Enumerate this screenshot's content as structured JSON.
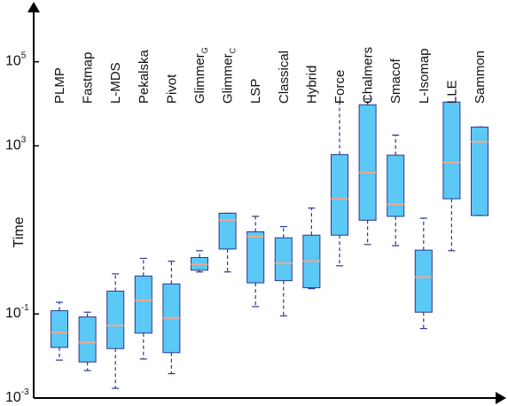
{
  "chart_data": {
    "type": "box",
    "ylabel": "Time",
    "y_scale": "log",
    "ylim": [
      0.001,
      2000000
    ],
    "y_ticks": [
      {
        "value": 0.001,
        "base": "10",
        "exp": "-3"
      },
      {
        "value": 0.1,
        "base": "10",
        "exp": "-1"
      },
      {
        "value": 1000,
        "base": "10",
        "exp": "3"
      },
      {
        "value": 100000,
        "base": "10",
        "exp": "5"
      }
    ],
    "colors": {
      "box_fill": "#5bc8f5",
      "box_edge": "#2b3a8c",
      "median": "#f4a58a",
      "whisker": "#2b3a8c",
      "axis": "#000000"
    },
    "categories": [
      {
        "name": "PLMP",
        "sub": ""
      },
      {
        "name": "Fastmap",
        "sub": ""
      },
      {
        "name": "L-MDS",
        "sub": ""
      },
      {
        "name": "Pekalska",
        "sub": ""
      },
      {
        "name": "Pivot",
        "sub": ""
      },
      {
        "name": "Glimmer",
        "sub": "G"
      },
      {
        "name": "Glimmer",
        "sub": "C"
      },
      {
        "name": "LSP",
        "sub": ""
      },
      {
        "name": "Classical",
        "sub": ""
      },
      {
        "name": "Hybrid",
        "sub": ""
      },
      {
        "name": "Force",
        "sub": ""
      },
      {
        "name": "Chalmers",
        "sub": ""
      },
      {
        "name": "Smacof",
        "sub": ""
      },
      {
        "name": "L-Isomap",
        "sub": ""
      },
      {
        "name": "LLE",
        "sub": ""
      },
      {
        "name": "Sammon",
        "sub": ""
      }
    ],
    "boxes": [
      {
        "min": 0.008,
        "q1": 0.016,
        "median": 0.036,
        "q3": 0.12,
        "max": 0.19
      },
      {
        "min": 0.0045,
        "q1": 0.0072,
        "median": 0.021,
        "q3": 0.085,
        "max": 0.11
      },
      {
        "min": 0.0017,
        "q1": 0.015,
        "median": 0.053,
        "q3": 0.35,
        "max": 0.9
      },
      {
        "min": 0.0085,
        "q1": 0.035,
        "median": 0.21,
        "q3": 0.8,
        "max": 2.1
      },
      {
        "min": 0.0038,
        "q1": 0.012,
        "median": 0.08,
        "q3": 0.52,
        "max": 1.8
      },
      {
        "min": 1.0,
        "q1": 1.1,
        "median": 1.5,
        "q3": 2.2,
        "max": 3.2
      },
      {
        "min": 1.0,
        "q1": 3.5,
        "median": 17,
        "q3": 25,
        "max": 25
      },
      {
        "min": 0.15,
        "q1": 0.55,
        "median": 7,
        "q3": 9,
        "max": 21
      },
      {
        "min": 0.09,
        "q1": 0.62,
        "median": 1.6,
        "q3": 6.5,
        "max": 12
      },
      {
        "min": 0.4,
        "q1": 0.42,
        "median": 1.8,
        "q3": 7.5,
        "max": 33
      },
      {
        "min": 1.4,
        "q1": 7.5,
        "median": 55,
        "q3": 620,
        "max": 11000
      },
      {
        "min": 4.5,
        "q1": 17,
        "median": 230,
        "q3": 9500,
        "max": 13000
      },
      {
        "min": 4.2,
        "q1": 21,
        "median": 40,
        "q3": 600,
        "max": 1800
      },
      {
        "min": 0.045,
        "q1": 0.11,
        "median": 0.75,
        "q3": 3.3,
        "max": 19
      },
      {
        "min": 3.2,
        "q1": 55,
        "median": 400,
        "q3": 11000,
        "max": 11000
      },
      {
        "min": 22,
        "q1": 22,
        "median": 1250,
        "q3": 2800,
        "max": 2800
      }
    ]
  }
}
